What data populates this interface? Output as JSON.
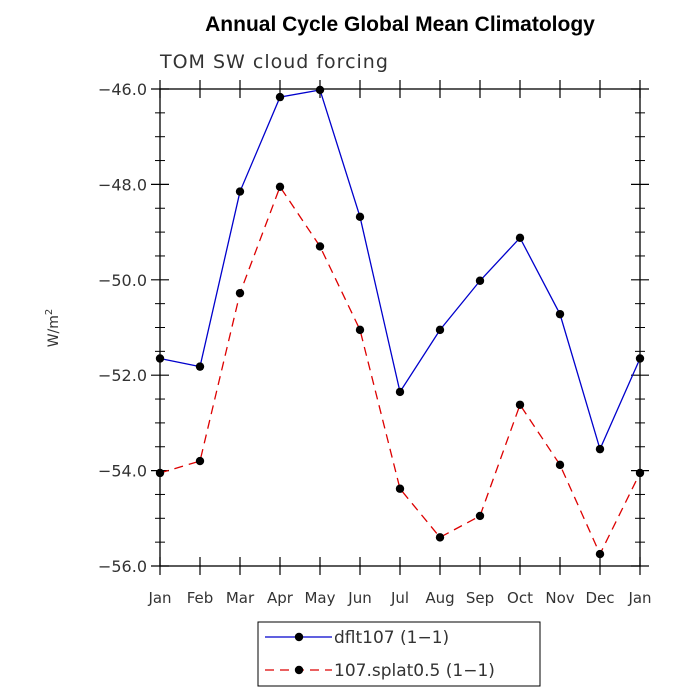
{
  "chart_data": {
    "type": "line",
    "title": "Annual Cycle Global Mean Climatology",
    "subtitle": "TOM SW cloud forcing",
    "xlabel": "",
    "ylabel": "W/m",
    "ylabel_superscript": "2",
    "categories": [
      "Jan",
      "Feb",
      "Mar",
      "Apr",
      "May",
      "Jun",
      "Jul",
      "Aug",
      "Sep",
      "Oct",
      "Nov",
      "Dec",
      "Jan"
    ],
    "ylim": [
      -56.0,
      -46.0
    ],
    "yticks": [
      -46.0,
      -48.0,
      -50.0,
      -52.0,
      -54.0,
      -56.0
    ],
    "ytick_labels": [
      "−46.0",
      "−48.0",
      "−50.0",
      "−52.0",
      "−54.0",
      "−56.0"
    ],
    "grid": false,
    "legend_position": "bottom-center",
    "series": [
      {
        "name": "dflt107 (1−1)",
        "color": "#0000cc",
        "dash": "solid",
        "marker": "filled-circle",
        "values": [
          -51.65,
          -51.82,
          -48.15,
          -46.17,
          -46.02,
          -48.68,
          -52.35,
          -51.05,
          -50.02,
          -49.12,
          -50.72,
          -53.55,
          -51.65
        ]
      },
      {
        "name": "107.splat0.5 (1−1)",
        "color": "#dd0000",
        "dash": "dashed",
        "marker": "filled-circle",
        "values": [
          -54.05,
          -53.8,
          -50.28,
          -48.05,
          -49.3,
          -51.05,
          -54.38,
          -55.4,
          -54.95,
          -52.62,
          -53.88,
          -55.75,
          -54.05
        ]
      }
    ]
  }
}
